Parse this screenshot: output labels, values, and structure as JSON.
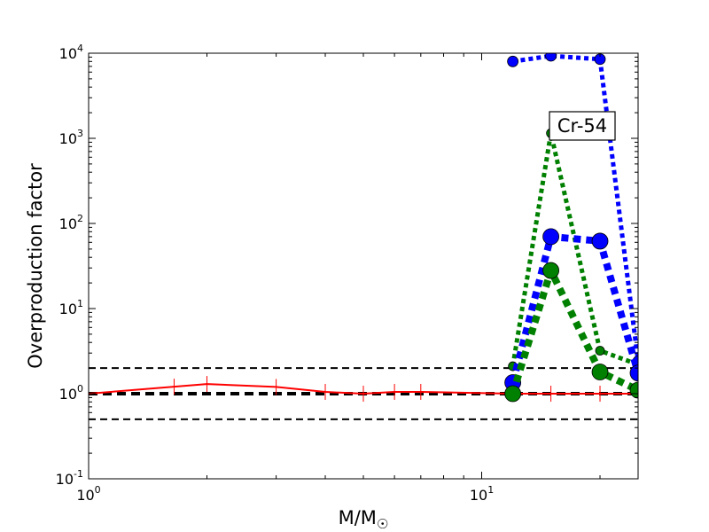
{
  "chart_data": {
    "type": "line",
    "xscale": "log",
    "yscale": "log",
    "xlim": [
      1,
      25
    ],
    "ylim": [
      0.1,
      10000
    ],
    "xlabel": "M/M",
    "xlabel_symbol": "☉",
    "ylabel": "Overproduction factor",
    "annotation": "Cr-54",
    "grid": false,
    "xticks": [
      {
        "base": "10",
        "exp": "0",
        "value": 1
      },
      {
        "base": "10",
        "exp": "1",
        "value": 10
      }
    ],
    "yticks": [
      {
        "base": "10",
        "exp": "-1",
        "value": 0.1
      },
      {
        "base": "10",
        "exp": "0",
        "value": 1
      },
      {
        "base": "10",
        "exp": "1",
        "value": 10
      },
      {
        "base": "10",
        "exp": "2",
        "value": 100
      },
      {
        "base": "10",
        "exp": "3",
        "value": 1000
      },
      {
        "base": "10",
        "exp": "4",
        "value": 10000
      }
    ],
    "reference_lines": [
      {
        "y": 2.0,
        "color": "#000000",
        "width": 2
      },
      {
        "y": 1.0,
        "color": "#000000",
        "width": 4
      },
      {
        "y": 0.5,
        "color": "#000000",
        "width": 2
      }
    ],
    "series": [
      {
        "color": "#ff0000",
        "style": "solid",
        "width": 2,
        "marker": "vtick",
        "x": [
          1,
          2,
          3,
          4,
          5,
          6,
          7,
          12,
          15,
          20,
          25
        ],
        "y": [
          1.0,
          1.3,
          1.2,
          1.05,
          1.0,
          1.05,
          1.05,
          1.0,
          1.0,
          1.0,
          1.0
        ],
        "marker_x": [
          1.65,
          2,
          3,
          4,
          5,
          6,
          7,
          12,
          15,
          20
        ]
      },
      {
        "color": "#0000ff",
        "style": "dotted",
        "width": 5,
        "marker": "circle",
        "marker_r": 6,
        "x": [
          12,
          15,
          20,
          25
        ],
        "y": [
          8000,
          9300,
          8500,
          2.4
        ]
      },
      {
        "color": "#008000",
        "style": "dotted",
        "width": 5,
        "marker": "circle",
        "marker_r": 5,
        "x": [
          12,
          15,
          20,
          25
        ],
        "y": [
          2.1,
          1150,
          3.2,
          2.2
        ]
      },
      {
        "color": "#0000ff",
        "style": "dotted",
        "width": 8,
        "marker": "circle",
        "marker_r": 9,
        "x": [
          12,
          15,
          20,
          25
        ],
        "y": [
          1.35,
          70,
          62,
          1.75
        ]
      },
      {
        "color": "#008000",
        "style": "dotted",
        "width": 8,
        "marker": "circle",
        "marker_r": 9,
        "x": [
          12,
          15,
          20,
          25
        ],
        "y": [
          1.0,
          28,
          1.8,
          1.1
        ]
      }
    ]
  }
}
